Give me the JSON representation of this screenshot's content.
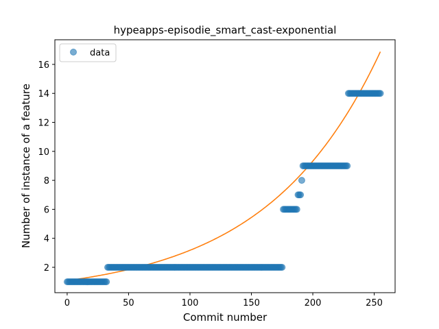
{
  "chart_data": {
    "type": "scatter",
    "title": "hypeapps-episodie_smart_cast-exponential",
    "xlabel": "Commit number",
    "ylabel": "Number of instance of a feature",
    "xlim": [
      -10,
      267
    ],
    "ylim": [
      0.25,
      17.7
    ],
    "xticks": [
      0,
      50,
      100,
      150,
      200,
      250
    ],
    "yticks": [
      2,
      4,
      6,
      8,
      10,
      12,
      14,
      16
    ],
    "grid": false,
    "legend": {
      "position": "top-left",
      "entries": [
        "data"
      ]
    },
    "colors": {
      "data": "#1f77b4",
      "fit": "#ff7f0e"
    },
    "series": [
      {
        "name": "data",
        "kind": "scatter",
        "segments": [
          {
            "x_start": 0,
            "x_end": 32,
            "y": 1
          },
          {
            "x_start": 33,
            "x_end": 175,
            "y": 2
          },
          {
            "x_start": 176,
            "x_end": 187,
            "y": 6
          },
          {
            "x_start": 188,
            "x_end": 190,
            "y": 7
          },
          {
            "x_start": 191,
            "x_end": 191,
            "y": 8
          },
          {
            "x_start": 192,
            "x_end": 228,
            "y": 9
          },
          {
            "x_start": 229,
            "x_end": 255,
            "y": 14
          }
        ]
      },
      {
        "kind": "line",
        "model": "exponential",
        "a": 1.08,
        "b": 0.01078,
        "x_range": [
          0,
          255
        ]
      }
    ]
  }
}
